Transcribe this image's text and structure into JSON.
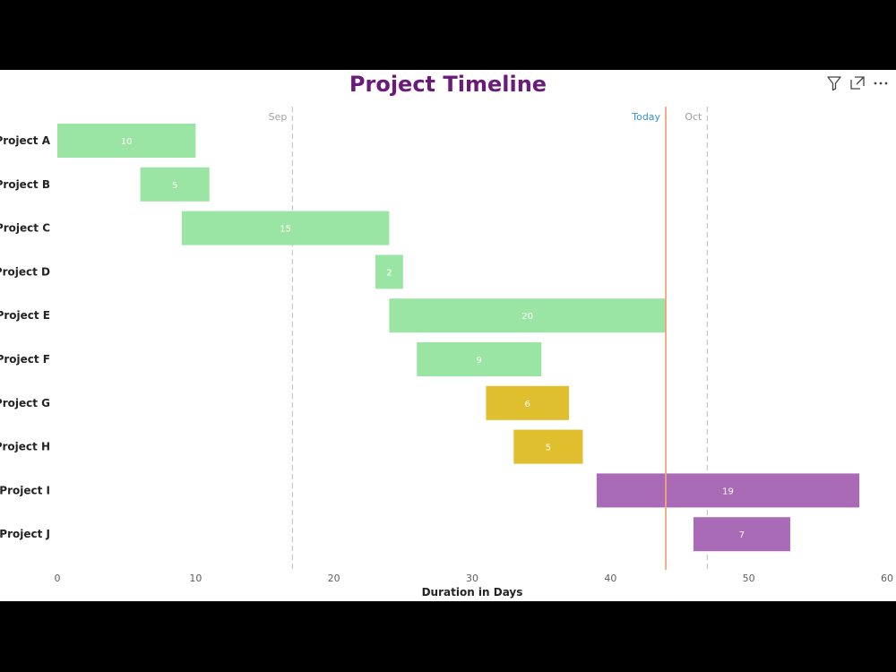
{
  "colors": {
    "title": "#6a1b7a",
    "green": "#9be5a4",
    "yellow": "#e0bf2e",
    "purple": "#a96bb6",
    "today_line": "#f2a47c",
    "today_label": "#3b8fd4",
    "month_line": "#c8c6c4",
    "month_label": "#a19f9d"
  },
  "header_icons": [
    "filter-icon",
    "focus-mode-icon",
    "more-options-icon"
  ],
  "chart_data": {
    "type": "bar",
    "title": "Project Timeline",
    "xlabel": "Duration in Days",
    "ylabel": "",
    "xlim": [
      0,
      60
    ],
    "xticks": [
      0,
      10,
      20,
      30,
      40,
      50,
      60
    ],
    "categories": [
      "Project A",
      "Project B",
      "Project C",
      "Project D",
      "Project E",
      "Project F",
      "Project G",
      "Project H",
      "Project I",
      "Project J"
    ],
    "bars": [
      {
        "start": 0,
        "duration": 10,
        "color": "green"
      },
      {
        "start": 6,
        "duration": 5,
        "color": "green"
      },
      {
        "start": 9,
        "duration": 15,
        "color": "green"
      },
      {
        "start": 23,
        "duration": 2,
        "color": "green"
      },
      {
        "start": 24,
        "duration": 20,
        "color": "green"
      },
      {
        "start": 26,
        "duration": 9,
        "color": "green"
      },
      {
        "start": 31,
        "duration": 6,
        "color": "yellow"
      },
      {
        "start": 33,
        "duration": 5,
        "color": "yellow"
      },
      {
        "start": 39,
        "duration": 19,
        "color": "purple"
      },
      {
        "start": 46,
        "duration": 7,
        "color": "purple"
      }
    ],
    "reference_lines": [
      {
        "label": "Sep",
        "value": 17,
        "style": "dashed",
        "color": "month_line",
        "label_color": "month_label"
      },
      {
        "label": "Today",
        "value": 44,
        "style": "solid",
        "color": "today_line",
        "label_color": "today_label"
      },
      {
        "label": "Oct",
        "value": 47,
        "style": "dashed",
        "color": "month_line",
        "label_color": "month_label"
      }
    ],
    "grid": false,
    "legend": "none"
  }
}
